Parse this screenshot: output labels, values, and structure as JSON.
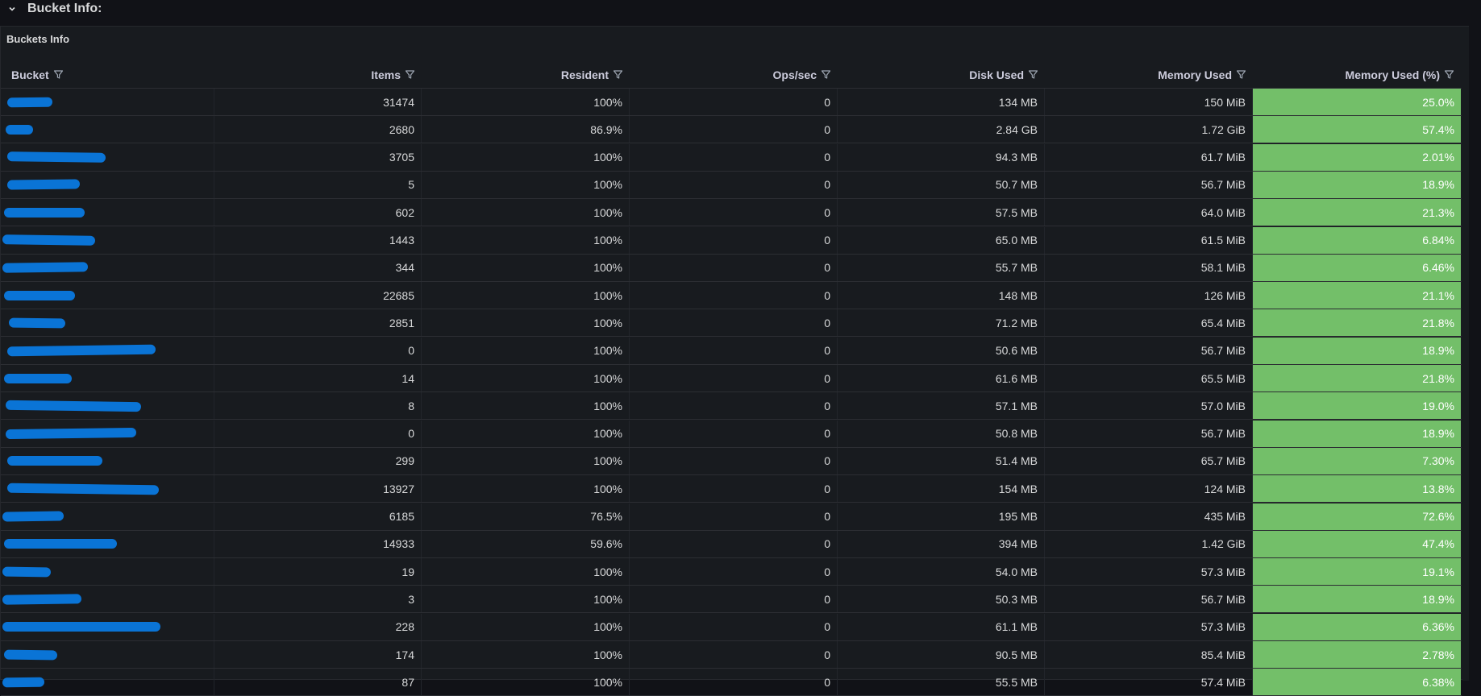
{
  "row": {
    "title": "Bucket Info:"
  },
  "panel": {
    "title": "Buckets Info"
  },
  "colors": {
    "accent_green": "#73bf69",
    "redaction_blue": "#0a74d6"
  },
  "table": {
    "columns": [
      "Bucket",
      "Items",
      "Resident",
      "Ops/sec",
      "Disk Used",
      "Memory Used",
      "Memory Used (%)"
    ],
    "rows": [
      {
        "bucket": "",
        "items": "31474",
        "resident": "100%",
        "ops": "0",
        "disk": "134 MB",
        "mem": "150 MiB",
        "pct": "25.0%"
      },
      {
        "bucket": "",
        "items": "2680",
        "resident": "86.9%",
        "ops": "0",
        "disk": "2.84 GB",
        "mem": "1.72 GiB",
        "pct": "57.4%"
      },
      {
        "bucket": "",
        "items": "3705",
        "resident": "100%",
        "ops": "0",
        "disk": "94.3 MB",
        "mem": "61.7 MiB",
        "pct": "2.01%"
      },
      {
        "bucket": "",
        "items": "5",
        "resident": "100%",
        "ops": "0",
        "disk": "50.7 MB",
        "mem": "56.7 MiB",
        "pct": "18.9%"
      },
      {
        "bucket": "",
        "items": "602",
        "resident": "100%",
        "ops": "0",
        "disk": "57.5 MB",
        "mem": "64.0 MiB",
        "pct": "21.3%"
      },
      {
        "bucket": "",
        "items": "1443",
        "resident": "100%",
        "ops": "0",
        "disk": "65.0 MB",
        "mem": "61.5 MiB",
        "pct": "6.84%"
      },
      {
        "bucket": "",
        "items": "344",
        "resident": "100%",
        "ops": "0",
        "disk": "55.7 MB",
        "mem": "58.1 MiB",
        "pct": "6.46%"
      },
      {
        "bucket": "",
        "items": "22685",
        "resident": "100%",
        "ops": "0",
        "disk": "148 MB",
        "mem": "126 MiB",
        "pct": "21.1%"
      },
      {
        "bucket": "",
        "items": "2851",
        "resident": "100%",
        "ops": "0",
        "disk": "71.2 MB",
        "mem": "65.4 MiB",
        "pct": "21.8%"
      },
      {
        "bucket": "",
        "items": "0",
        "resident": "100%",
        "ops": "0",
        "disk": "50.6 MB",
        "mem": "56.7 MiB",
        "pct": "18.9%"
      },
      {
        "bucket": "",
        "items": "14",
        "resident": "100%",
        "ops": "0",
        "disk": "61.6 MB",
        "mem": "65.5 MiB",
        "pct": "21.8%"
      },
      {
        "bucket": "",
        "items": "8",
        "resident": "100%",
        "ops": "0",
        "disk": "57.1 MB",
        "mem": "57.0 MiB",
        "pct": "19.0%"
      },
      {
        "bucket": "",
        "items": "0",
        "resident": "100%",
        "ops": "0",
        "disk": "50.8 MB",
        "mem": "56.7 MiB",
        "pct": "18.9%"
      },
      {
        "bucket": "",
        "items": "299",
        "resident": "100%",
        "ops": "0",
        "disk": "51.4 MB",
        "mem": "65.7 MiB",
        "pct": "7.30%"
      },
      {
        "bucket": "",
        "items": "13927",
        "resident": "100%",
        "ops": "0",
        "disk": "154 MB",
        "mem": "124 MiB",
        "pct": "13.8%"
      },
      {
        "bucket": "",
        "items": "6185",
        "resident": "76.5%",
        "ops": "0",
        "disk": "195 MB",
        "mem": "435 MiB",
        "pct": "72.6%"
      },
      {
        "bucket": "",
        "items": "14933",
        "resident": "59.6%",
        "ops": "0",
        "disk": "394 MB",
        "mem": "1.42 GiB",
        "pct": "47.4%"
      },
      {
        "bucket": "",
        "items": "19",
        "resident": "100%",
        "ops": "0",
        "disk": "54.0 MB",
        "mem": "57.3 MiB",
        "pct": "19.1%"
      },
      {
        "bucket": "",
        "items": "3",
        "resident": "100%",
        "ops": "0",
        "disk": "50.3 MB",
        "mem": "56.7 MiB",
        "pct": "18.9%"
      },
      {
        "bucket": "",
        "items": "228",
        "resident": "100%",
        "ops": "0",
        "disk": "61.1 MB",
        "mem": "57.3 MiB",
        "pct": "6.36%"
      },
      {
        "bucket": "",
        "items": "174",
        "resident": "100%",
        "ops": "0",
        "disk": "90.5 MB",
        "mem": "85.4 MiB",
        "pct": "2.78%"
      },
      {
        "bucket": "",
        "items": "87",
        "resident": "100%",
        "ops": "0",
        "disk": "55.5 MB",
        "mem": "57.4 MiB",
        "pct": "6.38%"
      }
    ]
  }
}
